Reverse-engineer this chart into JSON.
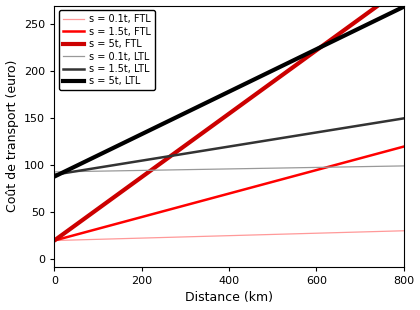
{
  "xlabel": "Distance (km)",
  "ylabel": "Coût de transport (euro)",
  "xlim": [
    0,
    800
  ],
  "ylim": [
    -8,
    270
  ],
  "yticks": [
    0,
    50,
    100,
    150,
    200,
    250
  ],
  "xticks": [
    0,
    200,
    400,
    600,
    800
  ],
  "lines": [
    {
      "label": "s = 0.1t, FTL",
      "color": "#FF9999",
      "linewidth": 0.9,
      "intercept": 20,
      "slope": 0.013
    },
    {
      "label": "s = 1.5t, FTL",
      "color": "#FF0000",
      "linewidth": 1.8,
      "intercept": 20,
      "slope": 0.125
    },
    {
      "label": "s = 5t, FTL",
      "color": "#CC0000",
      "linewidth": 3.0,
      "intercept": 20,
      "slope": 0.3375
    },
    {
      "label": "s = 0.1t, LTL",
      "color": "#999999",
      "linewidth": 0.9,
      "intercept": 93,
      "slope": 0.008
    },
    {
      "label": "s = 1.5t, LTL",
      "color": "#333333",
      "linewidth": 1.8,
      "intercept": 90,
      "slope": 0.075
    },
    {
      "label": "s = 5t, LTL",
      "color": "#000000",
      "linewidth": 3.0,
      "intercept": 88,
      "slope": 0.226
    }
  ],
  "background_color": "#FFFFFF",
  "legend_fontsize": 7.0,
  "axis_fontsize": 9,
  "tick_fontsize": 8
}
